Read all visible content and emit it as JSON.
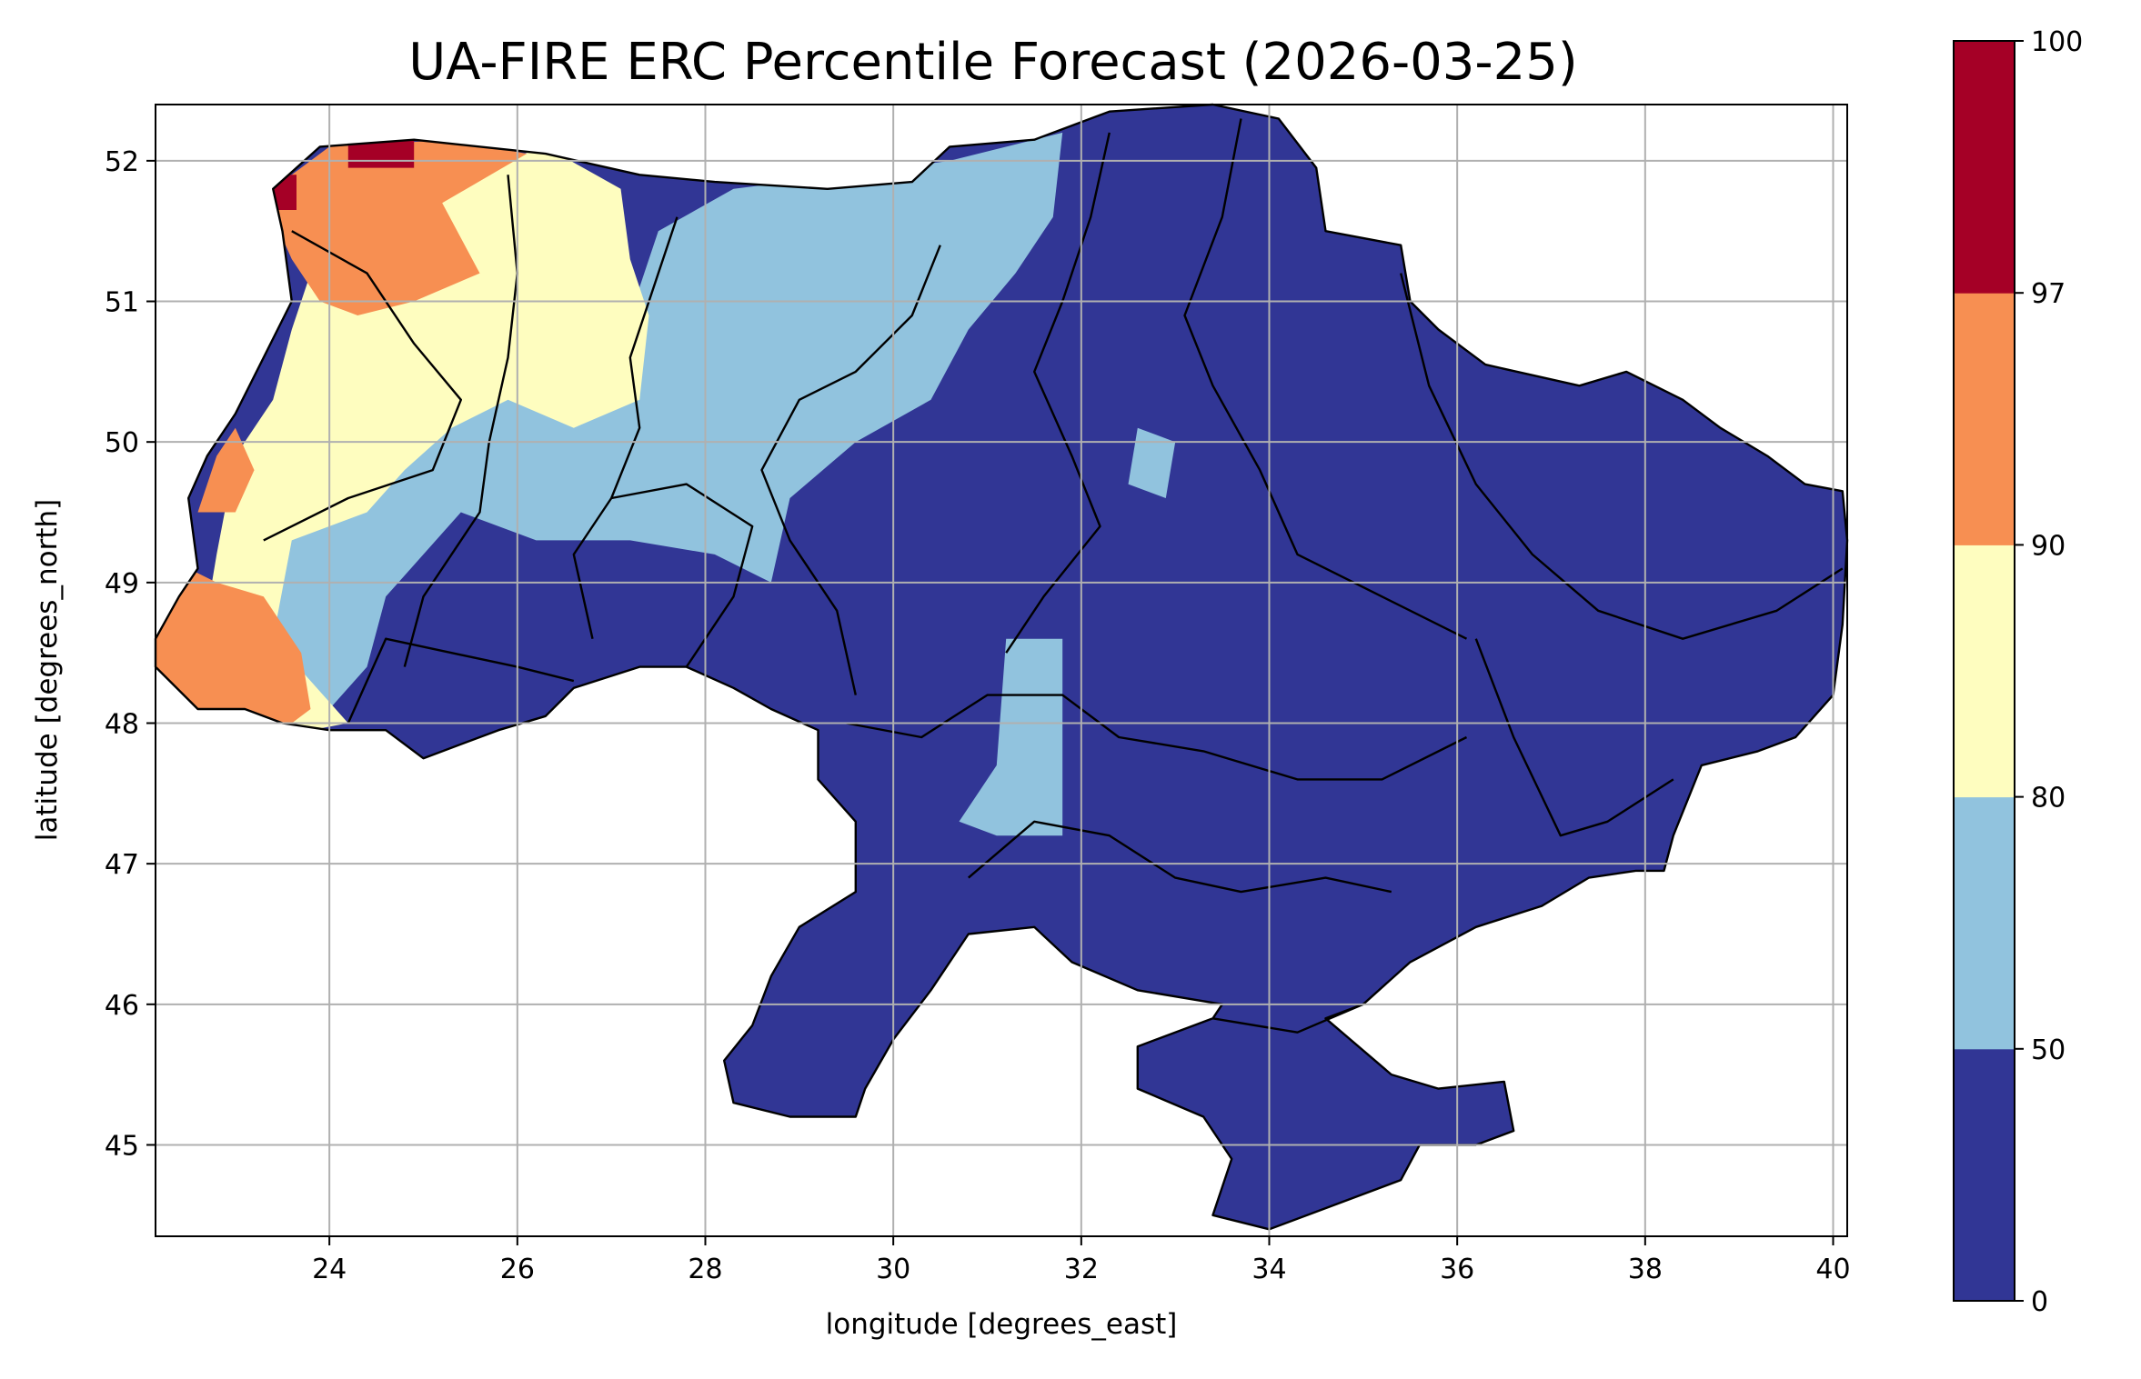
{
  "chart_data": {
    "type": "heatmap",
    "title": "UA-FIRE ERC Percentile Forecast (2026-03-25)",
    "xlabel": "longitude [degrees_east]",
    "ylabel": "latitude [degrees_north]",
    "xlim": [
      22.15,
      40.15
    ],
    "ylim": [
      44.35,
      52.4
    ],
    "x_ticks": [
      24,
      26,
      28,
      30,
      32,
      34,
      36,
      38,
      40
    ],
    "x_tick_labels": [
      "24",
      "26",
      "28",
      "30",
      "32",
      "34",
      "36",
      "38",
      "40"
    ],
    "y_ticks": [
      45,
      46,
      47,
      48,
      49,
      50,
      51,
      52
    ],
    "y_tick_labels": [
      "45",
      "46",
      "47",
      "48",
      "49",
      "50",
      "51",
      "52"
    ],
    "grid": true,
    "cell_size_deg": 0.25,
    "colorbar": {
      "bounds": [
        0,
        50,
        80,
        90,
        97,
        100
      ],
      "tick_labels": [
        "0",
        "50",
        "80",
        "90",
        "97",
        "100"
      ],
      "colors": [
        "#313695",
        "#91c3de",
        "#fefdbf",
        "#f78f52",
        "#a50026"
      ]
    },
    "regions": [
      {
        "category": 0,
        "lat_range": [
          44.4,
          49.7
        ],
        "lon_range": [
          24.2,
          40.1
        ],
        "color": "#313695"
      },
      {
        "category": 1,
        "lat_range": [
          47.2,
          51.8
        ],
        "lon_range": [
          23.0,
          31.8
        ],
        "color": "#91c3de"
      },
      {
        "category": 2,
        "lat_range": [
          47.9,
          52.1
        ],
        "lon_range": [
          22.6,
          27.4
        ],
        "color": "#fefdbf"
      },
      {
        "category": 3,
        "lat_range": [
          47.9,
          52.1
        ],
        "lon_range": [
          22.2,
          26.2
        ],
        "color": "#f78f52"
      },
      {
        "category": 4,
        "lat_range": [
          51.7,
          52.1
        ],
        "lon_range": [
          23.4,
          24.9
        ],
        "color": "#a50026"
      }
    ]
  }
}
